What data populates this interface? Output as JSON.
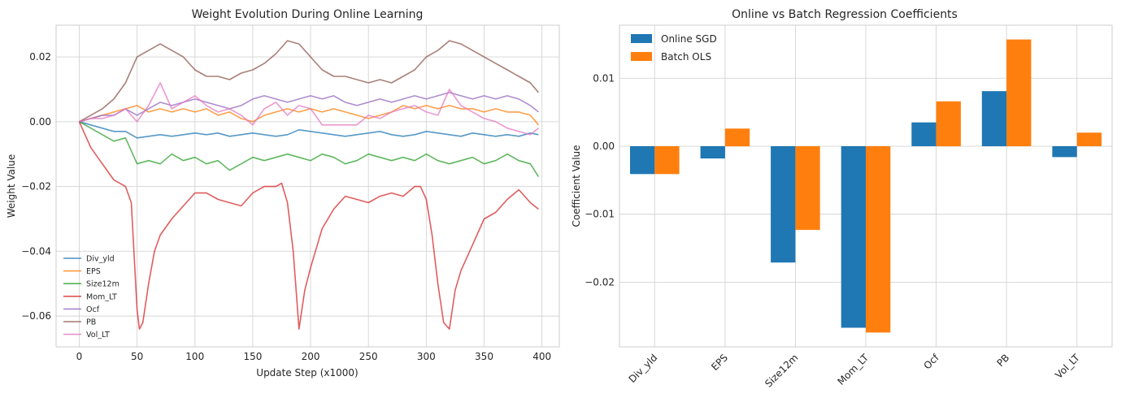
{
  "chart_data": [
    {
      "type": "line",
      "title": "Weight Evolution During Online Learning",
      "xlabel": "Update Step (x1000)",
      "ylabel": "Weight Value",
      "xlim": [
        -20,
        415
      ],
      "ylim": [
        -0.0695,
        0.0298
      ],
      "xticks": [
        0,
        50,
        100,
        150,
        200,
        250,
        300,
        350,
        400
      ],
      "xtick_labels": [
        "0",
        "50",
        "100",
        "150",
        "200",
        "250",
        "300",
        "350",
        "400"
      ],
      "yticks": [
        0.02,
        0.0,
        -0.02,
        -0.04,
        -0.06
      ],
      "ytick_labels": [
        "0.02",
        "0.00",
        "−0.02",
        "−0.04",
        "−0.06"
      ],
      "grid": true,
      "legend_position": "lower-left",
      "series": [
        {
          "name": "Div_yld",
          "color": "#1f77b4",
          "x": [
            0,
            10,
            20,
            30,
            40,
            50,
            60,
            70,
            80,
            90,
            100,
            110,
            120,
            130,
            140,
            150,
            160,
            170,
            180,
            190,
            200,
            210,
            220,
            230,
            240,
            250,
            260,
            270,
            280,
            290,
            300,
            310,
            320,
            330,
            340,
            350,
            360,
            370,
            380,
            390,
            397
          ],
          "values": [
            0,
            -0.001,
            -0.002,
            -0.003,
            -0.003,
            -0.005,
            -0.0045,
            -0.004,
            -0.0045,
            -0.004,
            -0.0035,
            -0.004,
            -0.0035,
            -0.0045,
            -0.004,
            -0.0035,
            -0.004,
            -0.0045,
            -0.004,
            -0.0025,
            -0.003,
            -0.0035,
            -0.004,
            -0.0045,
            -0.004,
            -0.0035,
            -0.003,
            -0.004,
            -0.0045,
            -0.004,
            -0.003,
            -0.0035,
            -0.004,
            -0.0045,
            -0.0035,
            -0.004,
            -0.0045,
            -0.004,
            -0.0045,
            -0.0035,
            -0.004
          ]
        },
        {
          "name": "EPS",
          "color": "#ff7f0e",
          "x": [
            0,
            10,
            20,
            30,
            40,
            50,
            60,
            70,
            80,
            90,
            100,
            110,
            120,
            130,
            140,
            150,
            160,
            170,
            180,
            190,
            200,
            210,
            220,
            230,
            240,
            250,
            260,
            270,
            280,
            290,
            300,
            310,
            320,
            330,
            340,
            350,
            360,
            370,
            380,
            390,
            397
          ],
          "values": [
            0,
            0.001,
            0.002,
            0.003,
            0.004,
            0.005,
            0.003,
            0.004,
            0.003,
            0.004,
            0.003,
            0.004,
            0.002,
            0.003,
            0.001,
            0.0,
            0.002,
            0.003,
            0.004,
            0.003,
            0.004,
            0.003,
            0.004,
            0.003,
            0.002,
            0.001,
            0.002,
            0.003,
            0.005,
            0.004,
            0.005,
            0.004,
            0.005,
            0.004,
            0.004,
            0.003,
            0.004,
            0.003,
            0.003,
            0.002,
            -0.001
          ]
        },
        {
          "name": "Size12m",
          "color": "#2ca02c",
          "x": [
            0,
            10,
            20,
            30,
            40,
            50,
            60,
            70,
            80,
            90,
            100,
            110,
            120,
            130,
            140,
            150,
            160,
            170,
            180,
            190,
            200,
            210,
            220,
            230,
            240,
            250,
            260,
            270,
            280,
            290,
            300,
            310,
            320,
            330,
            340,
            350,
            360,
            370,
            380,
            390,
            397
          ],
          "values": [
            0,
            -0.002,
            -0.004,
            -0.006,
            -0.005,
            -0.013,
            -0.012,
            -0.013,
            -0.01,
            -0.012,
            -0.011,
            -0.013,
            -0.012,
            -0.015,
            -0.013,
            -0.011,
            -0.012,
            -0.011,
            -0.01,
            -0.011,
            -0.012,
            -0.01,
            -0.011,
            -0.013,
            -0.012,
            -0.01,
            -0.011,
            -0.012,
            -0.011,
            -0.012,
            -0.01,
            -0.012,
            -0.013,
            -0.012,
            -0.011,
            -0.013,
            -0.012,
            -0.01,
            -0.012,
            -0.013,
            -0.017
          ]
        },
        {
          "name": "Mom_LT",
          "color": "#d62728",
          "x": [
            0,
            5,
            10,
            20,
            30,
            40,
            45,
            50,
            52,
            55,
            60,
            65,
            70,
            80,
            90,
            100,
            110,
            120,
            130,
            140,
            150,
            160,
            170,
            175,
            180,
            185,
            190,
            195,
            200,
            210,
            220,
            230,
            240,
            250,
            260,
            270,
            280,
            290,
            295,
            300,
            305,
            310,
            315,
            320,
            325,
            330,
            340,
            350,
            360,
            370,
            380,
            390,
            397
          ],
          "values": [
            0,
            -0.004,
            -0.008,
            -0.013,
            -0.018,
            -0.02,
            -0.025,
            -0.058,
            -0.064,
            -0.062,
            -0.05,
            -0.04,
            -0.035,
            -0.03,
            -0.026,
            -0.022,
            -0.022,
            -0.024,
            -0.025,
            -0.026,
            -0.022,
            -0.02,
            -0.02,
            -0.019,
            -0.025,
            -0.04,
            -0.064,
            -0.052,
            -0.045,
            -0.033,
            -0.027,
            -0.023,
            -0.024,
            -0.025,
            -0.023,
            -0.022,
            -0.023,
            -0.02,
            -0.02,
            -0.024,
            -0.035,
            -0.05,
            -0.062,
            -0.064,
            -0.052,
            -0.046,
            -0.038,
            -0.03,
            -0.028,
            -0.024,
            -0.021,
            -0.025,
            -0.027
          ]
        },
        {
          "name": "Ocf",
          "color": "#9467bd",
          "x": [
            0,
            10,
            20,
            30,
            40,
            50,
            60,
            70,
            80,
            90,
            100,
            110,
            120,
            130,
            140,
            150,
            160,
            170,
            180,
            190,
            200,
            210,
            220,
            230,
            240,
            250,
            260,
            270,
            280,
            290,
            300,
            310,
            320,
            330,
            340,
            350,
            360,
            370,
            380,
            390,
            397
          ],
          "values": [
            0,
            0.001,
            0.002,
            0.002,
            0.004,
            0.002,
            0.004,
            0.006,
            0.005,
            0.006,
            0.007,
            0.006,
            0.005,
            0.004,
            0.005,
            0.007,
            0.008,
            0.007,
            0.006,
            0.007,
            0.008,
            0.007,
            0.008,
            0.006,
            0.005,
            0.006,
            0.007,
            0.006,
            0.007,
            0.008,
            0.007,
            0.008,
            0.009,
            0.008,
            0.007,
            0.008,
            0.007,
            0.008,
            0.007,
            0.005,
            0.003
          ]
        },
        {
          "name": "PB",
          "color": "#8c564b",
          "x": [
            0,
            10,
            20,
            30,
            40,
            50,
            60,
            70,
            80,
            90,
            100,
            110,
            120,
            130,
            140,
            150,
            160,
            170,
            180,
            190,
            200,
            210,
            220,
            230,
            240,
            250,
            260,
            270,
            280,
            290,
            300,
            310,
            320,
            330,
            340,
            350,
            360,
            370,
            380,
            390,
            397
          ],
          "values": [
            0,
            0.002,
            0.004,
            0.007,
            0.012,
            0.02,
            0.022,
            0.024,
            0.022,
            0.02,
            0.016,
            0.014,
            0.014,
            0.013,
            0.015,
            0.016,
            0.018,
            0.021,
            0.025,
            0.024,
            0.02,
            0.016,
            0.014,
            0.014,
            0.013,
            0.012,
            0.013,
            0.012,
            0.014,
            0.016,
            0.02,
            0.022,
            0.025,
            0.024,
            0.022,
            0.02,
            0.018,
            0.016,
            0.014,
            0.012,
            0.009
          ]
        },
        {
          "name": "Vol_LT",
          "color": "#e377c2",
          "x": [
            0,
            10,
            20,
            30,
            40,
            50,
            60,
            70,
            80,
            90,
            100,
            110,
            120,
            130,
            140,
            150,
            160,
            170,
            180,
            190,
            200,
            210,
            220,
            230,
            240,
            250,
            260,
            270,
            280,
            290,
            300,
            310,
            320,
            330,
            340,
            350,
            360,
            370,
            380,
            390,
            397
          ],
          "values": [
            0,
            0.001,
            0.001,
            0.002,
            0.004,
            0.0,
            0.005,
            0.012,
            0.004,
            0.006,
            0.008,
            0.005,
            0.003,
            0.004,
            0.002,
            -0.001,
            0.004,
            0.006,
            0.002,
            0.005,
            0.004,
            -0.001,
            -0.001,
            -0.001,
            -0.001,
            0.002,
            0.001,
            0.003,
            0.004,
            0.005,
            0.003,
            0.002,
            0.01,
            0.005,
            0.003,
            0.001,
            0.0,
            -0.002,
            -0.003,
            -0.004,
            -0.002
          ]
        }
      ]
    },
    {
      "type": "bar",
      "title": "Online vs Batch Regression Coefficients",
      "xlabel": "",
      "ylabel": "Coefficient Value",
      "categories": [
        "Div_yld",
        "EPS",
        "Size12m",
        "Mom_LT",
        "Ocf",
        "PB",
        "Vol_LT"
      ],
      "ylim": [
        -0.0295,
        0.0178
      ],
      "yticks": [
        0.01,
        0.0,
        -0.01,
        -0.02
      ],
      "ytick_labels": [
        "0.01",
        "0.00",
        "−0.01",
        "−0.02"
      ],
      "grid": true,
      "legend_position": "top-left",
      "series": [
        {
          "name": "Online SGD",
          "color": "#1f77b4",
          "values": [
            -0.0041,
            -0.0018,
            -0.0171,
            -0.0267,
            0.0035,
            0.0081,
            -0.0016
          ]
        },
        {
          "name": "Batch OLS",
          "color": "#ff7f0e",
          "values": [
            -0.0041,
            0.0026,
            -0.0123,
            -0.0274,
            0.0066,
            0.0157,
            0.002
          ]
        }
      ]
    }
  ]
}
